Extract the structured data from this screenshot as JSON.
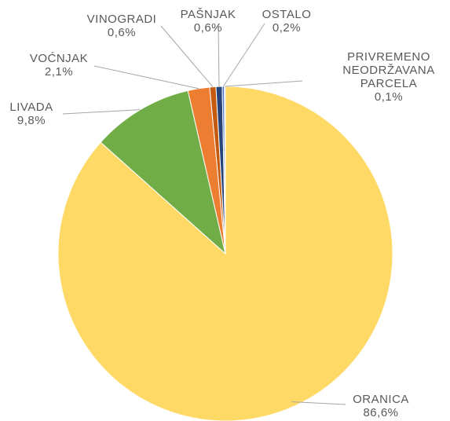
{
  "chart_data": {
    "type": "pie",
    "categories": [
      "ORANICA",
      "LIVADA",
      "VOĆNJAK",
      "VINOGRADI",
      "PAŠNJAK",
      "OSTALO",
      "PRIVREMENO NEODRŽAVANA PARCELA"
    ],
    "values": [
      86.6,
      9.8,
      2.1,
      0.6,
      0.6,
      0.2,
      0.1
    ],
    "value_labels": [
      "86,6%",
      "9,8%",
      "2,1%",
      "0,6%",
      "0,6%",
      "0,2%",
      "0,1%"
    ],
    "colors": [
      "#ffd966",
      "#70ad47",
      "#ed7d31",
      "#c55a11",
      "#264478",
      "#4472c4",
      "#a5a5a5"
    ]
  }
}
